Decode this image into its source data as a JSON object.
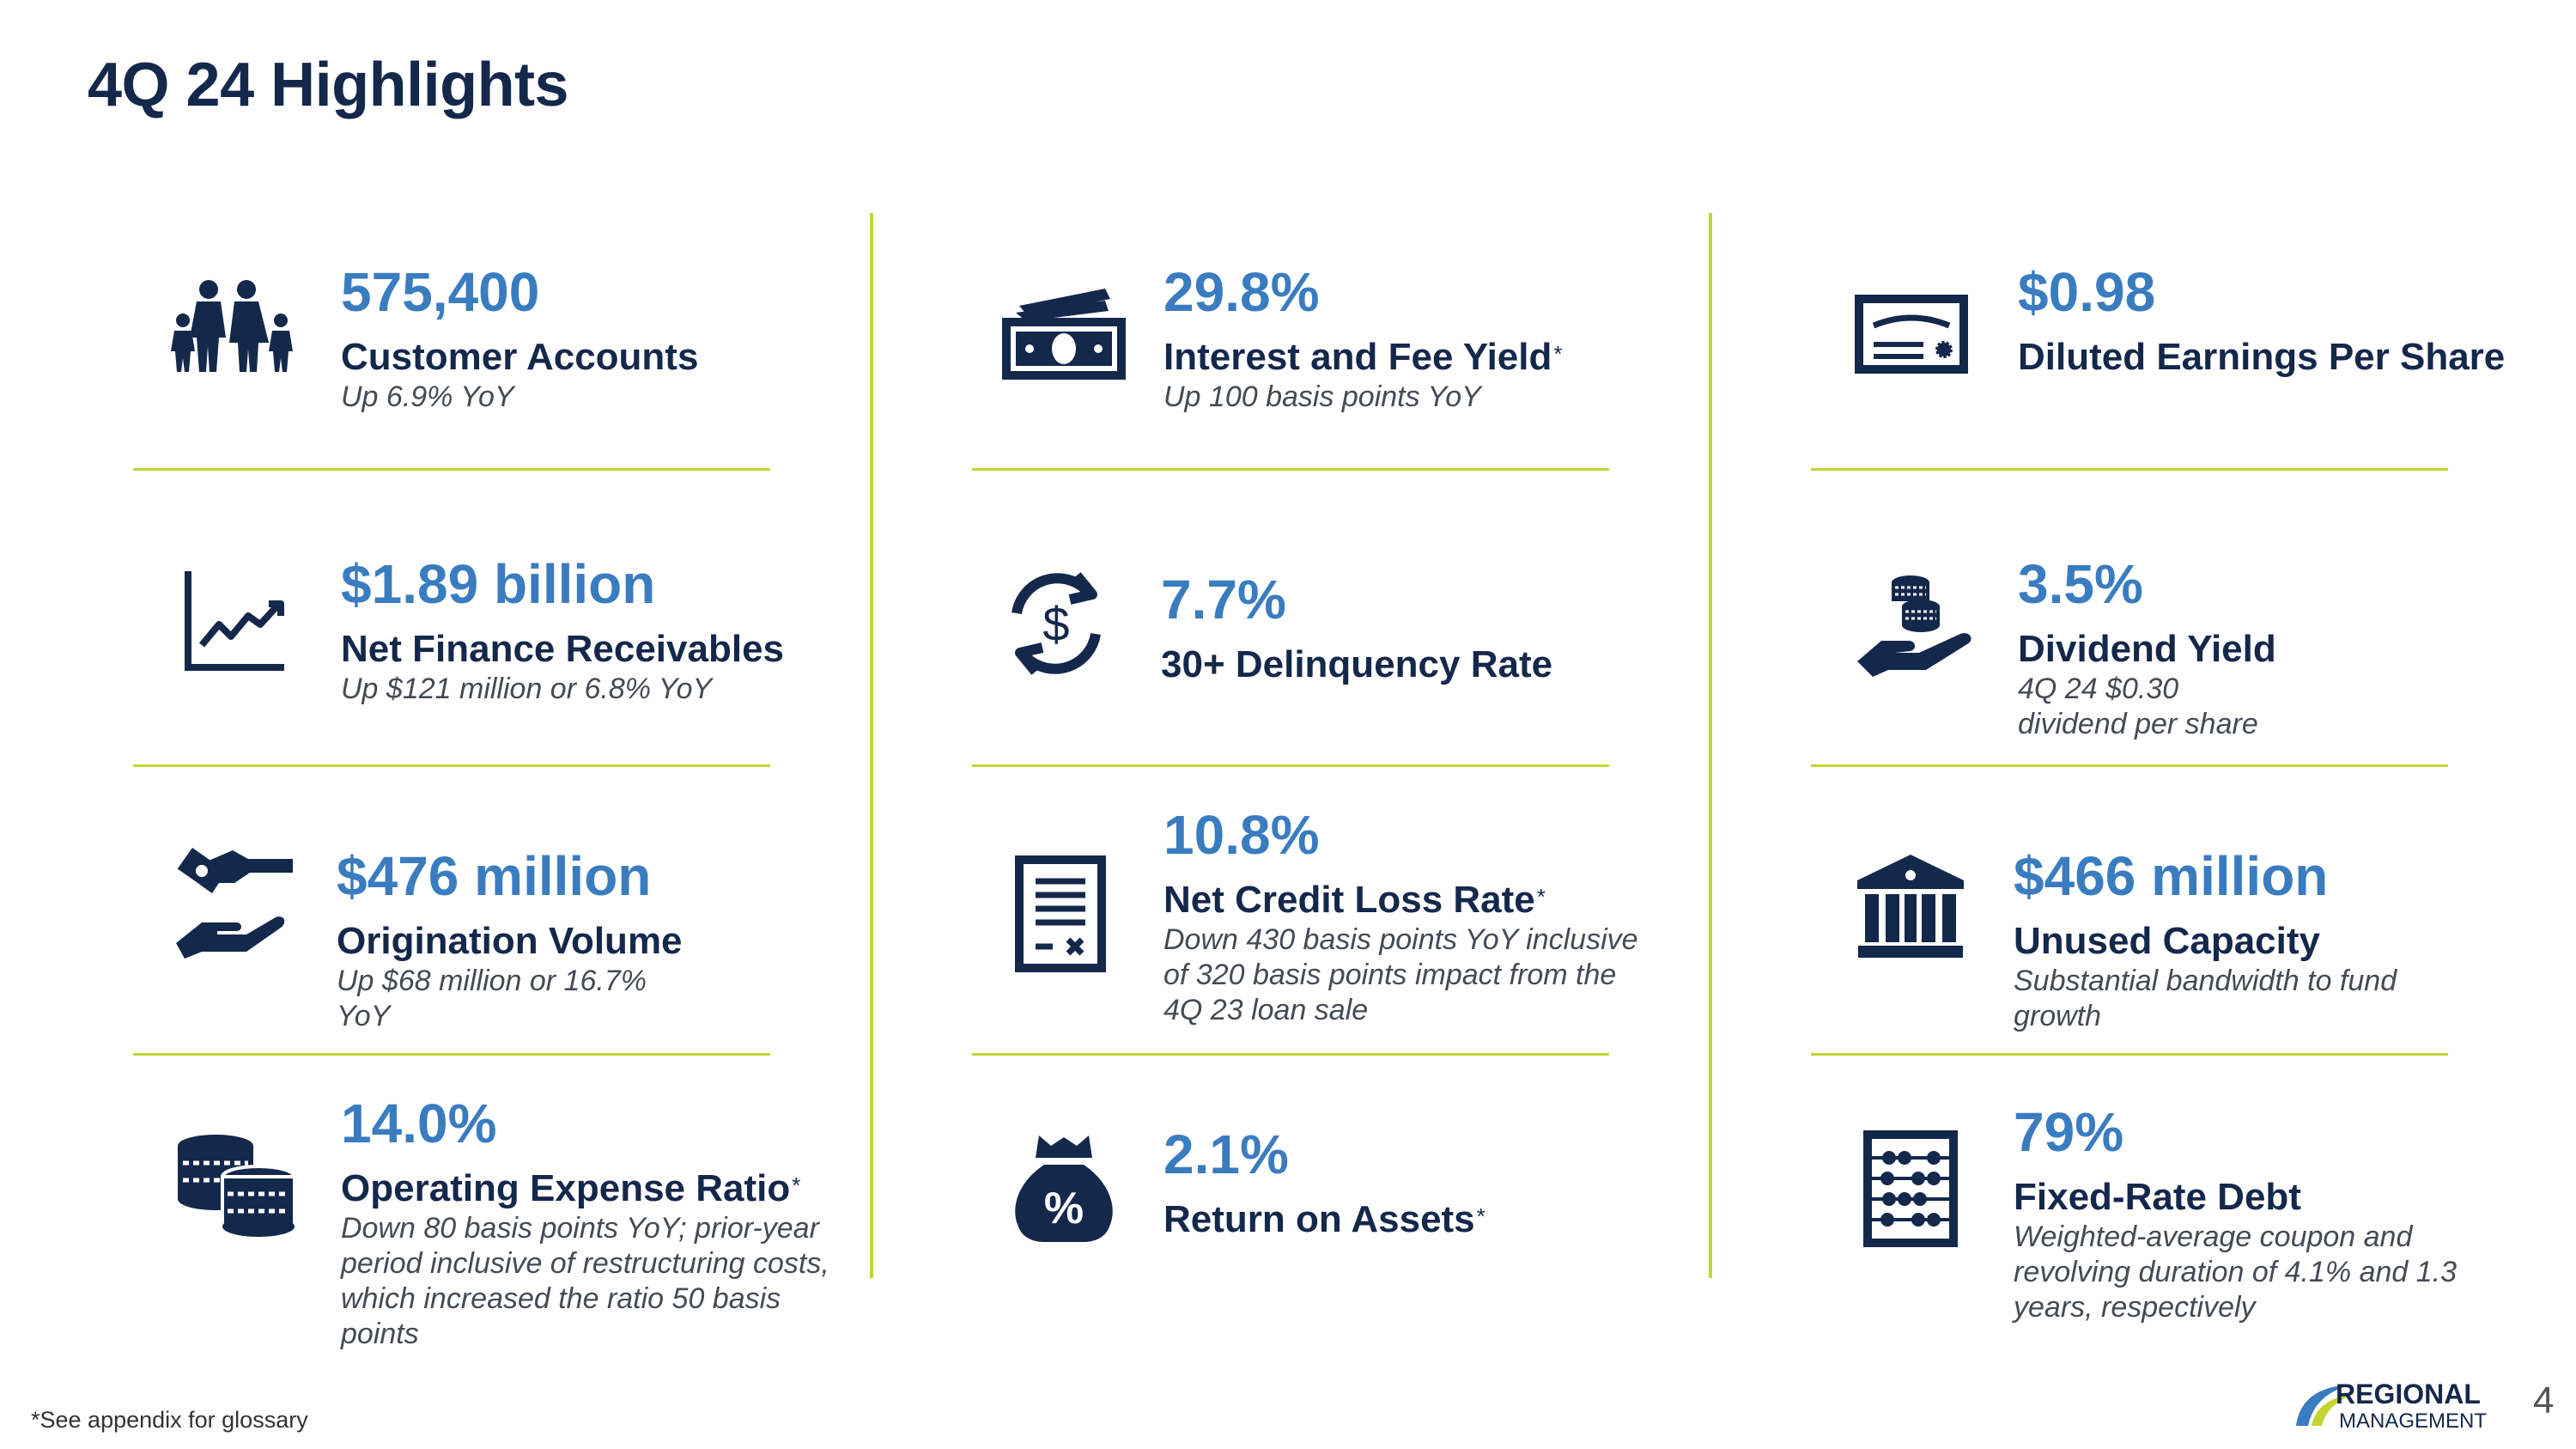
{
  "title": "4Q 24 Highlights",
  "footnote": "*See appendix for glossary",
  "page_number": "4",
  "logo": {
    "line1": "REGIONAL",
    "line2": "MANAGEMENT"
  },
  "colors": {
    "navy": "#14284b",
    "accent_blue": "#3a7cc0",
    "divider_green": "#c4d531"
  },
  "metrics": [
    {
      "value": "575,400",
      "label": "Customer Accounts",
      "note": "Up 6.9% YoY",
      "icon": "family-icon"
    },
    {
      "value": "$1.89 billion",
      "label": "Net Finance Receivables",
      "note": "Up $121 million or 6.8% YoY",
      "icon": "growth-chart-icon"
    },
    {
      "value": "$476 million",
      "label": "Origination Volume",
      "note": "Up $68 million or 16.7% YoY",
      "icon": "money-hand-icon"
    },
    {
      "value": "14.0%",
      "label": "Operating Expense Ratio",
      "asterisk": "*",
      "note": "Down 80 basis points YoY; prior-year period inclusive of restructuring costs, which increased the ratio 50 basis points",
      "icon": "coin-stacks-icon"
    },
    {
      "value": "29.8%",
      "label": "Interest and Fee Yield",
      "asterisk": "*",
      "note": "Up 100 basis points YoY",
      "icon": "banknotes-icon"
    },
    {
      "value": "7.7%",
      "label": "30+ Delinquency Rate",
      "icon": "dollar-cycle-icon"
    },
    {
      "value": "10.8%",
      "label": "Net Credit Loss Rate",
      "asterisk": "*",
      "note": "Down 430 basis points YoY inclusive of 320 basis points impact from the 4Q 23 loan sale",
      "icon": "document-icon"
    },
    {
      "value": "2.1%",
      "label": "Return on Assets",
      "asterisk": "*",
      "icon": "percent-bag-icon"
    },
    {
      "value": "$0.98",
      "label": "Diluted Earnings Per Share",
      "icon": "certificate-icon"
    },
    {
      "value": "3.5%",
      "label": "Dividend Yield",
      "note": "4Q 24 $0.30 dividend per share",
      "icon": "coins-in-hand-icon"
    },
    {
      "value": "$466 million",
      "label": "Unused Capacity",
      "note": "Substantial bandwidth to fund growth",
      "icon": "bank-icon"
    },
    {
      "value": "79%",
      "label": "Fixed-Rate Debt",
      "note": "Weighted-average coupon and revolving duration of 4.1% and 1.3 years, respectively",
      "icon": "abacus-icon"
    }
  ]
}
